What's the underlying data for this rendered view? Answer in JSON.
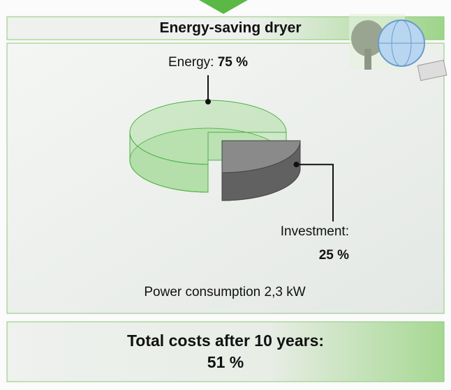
{
  "chart_data": {
    "type": "pie",
    "title": "Energy-saving dryer",
    "categories": [
      "Energy:",
      "Investment:"
    ],
    "values": [
      75,
      25
    ],
    "value_labels": [
      "75 %",
      "25 %"
    ],
    "colors": [
      "#7fcf6a",
      "#8a8a8a"
    ],
    "note": "Power consumption 2,3 kW",
    "footer": "Total costs after 10 years:",
    "footer_value": "51 %"
  }
}
